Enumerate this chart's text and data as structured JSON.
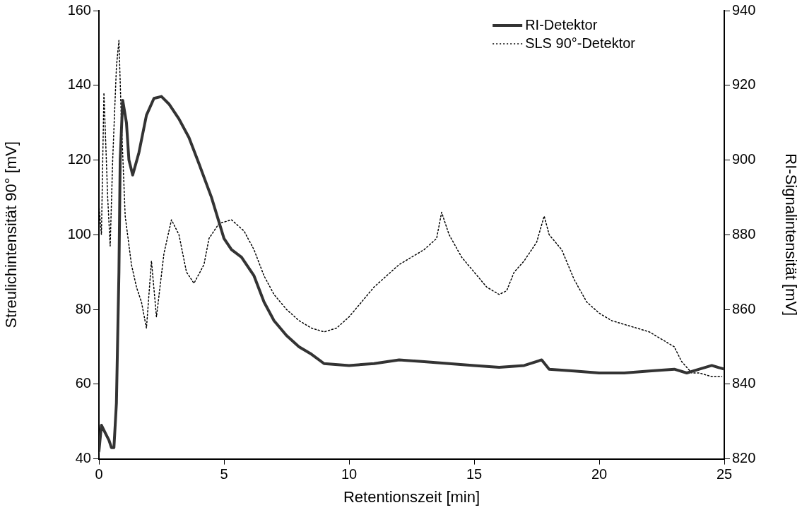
{
  "chart_data": {
    "type": "line",
    "xlabel": "Retentionszeit [min]",
    "ylabel": "Streulichintensität 90° [mV]",
    "y2label": "RI-Signalintensität [mV]",
    "xlim": [
      0,
      25
    ],
    "xticks": [
      0,
      5,
      10,
      15,
      20,
      25
    ],
    "ylim": [
      40,
      160
    ],
    "yticks": [
      40,
      60,
      80,
      100,
      120,
      140,
      160
    ],
    "y2lim": [
      820,
      940
    ],
    "y2ticks": [
      820,
      840,
      860,
      880,
      900,
      920,
      940
    ],
    "grid": false,
    "legend": "top right",
    "marker": "none",
    "series": [
      {
        "name": "RI-Detektor",
        "color": "#333333",
        "axis": "y2",
        "line_style": "solid",
        "x": [
          0,
          0.1,
          0.25,
          0.4,
          0.5,
          0.6,
          0.7,
          0.8,
          0.85,
          0.95,
          1.1,
          1.2,
          1.35,
          1.6,
          1.9,
          2.2,
          2.5,
          2.8,
          3.2,
          3.6,
          4.0,
          4.5,
          5.0,
          5.3,
          5.7,
          6.2,
          6.6,
          7,
          7.5,
          8,
          8.5,
          9,
          10,
          11,
          12,
          13,
          14,
          15,
          16,
          17,
          17.7,
          18,
          19,
          20,
          21,
          22,
          23,
          23.5,
          24,
          24.5,
          25
        ],
        "values": [
          822,
          829,
          827,
          825,
          823,
          823,
          835,
          870,
          900,
          916,
          910,
          900,
          896,
          902,
          912,
          916.5,
          917,
          915,
          911,
          906,
          899,
          890,
          879,
          876,
          874,
          869,
          862,
          857,
          853,
          850,
          848,
          845.5,
          845,
          845.5,
          846.5,
          846,
          845.5,
          845,
          844.5,
          845,
          846.5,
          844,
          843.5,
          843,
          843,
          843.5,
          844,
          843,
          844,
          845,
          844
        ]
      },
      {
        "name": "SLS 90°-Detektor",
        "color": "#000000",
        "line_style": "dotted",
        "x": [
          0,
          0.1,
          0.2,
          0.35,
          0.45,
          0.55,
          0.7,
          0.8,
          0.9,
          1.05,
          1.3,
          1.5,
          1.7,
          1.9,
          2.1,
          2.3,
          2.6,
          2.9,
          3.2,
          3.5,
          3.8,
          4.2,
          4.4,
          4.8,
          5.3,
          5.8,
          6.2,
          6.6,
          7.0,
          7.5,
          8.0,
          8.5,
          9,
          9.5,
          10,
          10.5,
          11,
          11.5,
          12,
          12.5,
          13,
          13.5,
          13.7,
          14,
          14.5,
          15,
          15.5,
          16,
          16.3,
          16.6,
          17,
          17.5,
          17.8,
          18,
          18.5,
          19,
          19.5,
          20,
          20.5,
          21,
          21.5,
          22,
          22.5,
          23,
          23.3,
          23.7,
          24,
          24.5,
          24.9
        ],
        "values": [
          108,
          100,
          138,
          110,
          97,
          120,
          145,
          152,
          130,
          105,
          92,
          86,
          82,
          75,
          93,
          78,
          95,
          104,
          100,
          90,
          87,
          92,
          99,
          103,
          104,
          101,
          96,
          89,
          84,
          80,
          77,
          75,
          74,
          75,
          78,
          82,
          86,
          89,
          92,
          94,
          96,
          99,
          106,
          100,
          94,
          90,
          86,
          84,
          85,
          90,
          93,
          98,
          105,
          100,
          96,
          88,
          82,
          79,
          77,
          76,
          75,
          74,
          72,
          70,
          66,
          63,
          63,
          62,
          62
        ]
      }
    ]
  }
}
